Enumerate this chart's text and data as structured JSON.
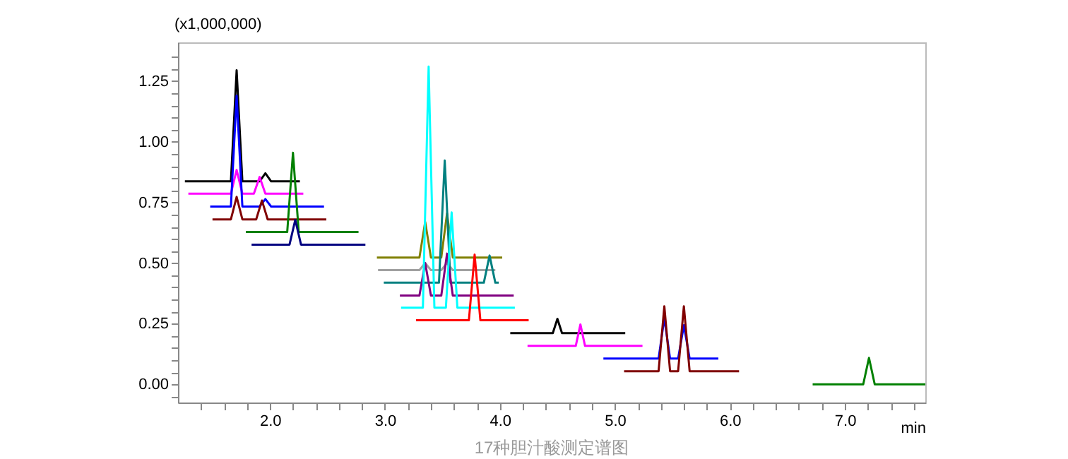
{
  "chart_data": {
    "type": "line",
    "ylabel": "(x1,000,000)",
    "xlabel": "min",
    "annotations": [
      "17种胆汁酸测定谱图"
    ],
    "xlim": [
      1.2,
      7.7
    ],
    "ylim": [
      -0.075,
      1.41
    ],
    "xticks": [
      {
        "value": 1.4,
        "label": null
      },
      {
        "value": 1.6,
        "label": null
      },
      {
        "value": 1.8,
        "label": null
      },
      {
        "value": 2.0,
        "label": "2.0"
      },
      {
        "value": 2.2,
        "label": null
      },
      {
        "value": 2.4,
        "label": null
      },
      {
        "value": 2.6,
        "label": null
      },
      {
        "value": 2.8,
        "label": null
      },
      {
        "value": 3.0,
        "label": "3.0"
      },
      {
        "value": 3.2,
        "label": null
      },
      {
        "value": 3.4,
        "label": null
      },
      {
        "value": 3.6,
        "label": null
      },
      {
        "value": 3.8,
        "label": null
      },
      {
        "value": 4.0,
        "label": "4.0"
      },
      {
        "value": 4.2,
        "label": null
      },
      {
        "value": 4.4,
        "label": null
      },
      {
        "value": 4.6,
        "label": null
      },
      {
        "value": 4.8,
        "label": null
      },
      {
        "value": 5.0,
        "label": "5.0"
      },
      {
        "value": 5.2,
        "label": null
      },
      {
        "value": 5.4,
        "label": null
      },
      {
        "value": 5.6,
        "label": null
      },
      {
        "value": 5.8,
        "label": null
      },
      {
        "value": 6.0,
        "label": "6.0"
      },
      {
        "value": 6.2,
        "label": null
      },
      {
        "value": 6.4,
        "label": null
      },
      {
        "value": 6.6,
        "label": null
      },
      {
        "value": 6.8,
        "label": null
      },
      {
        "value": 7.0,
        "label": "7.0"
      },
      {
        "value": 7.2,
        "label": null
      },
      {
        "value": 7.4,
        "label": null
      },
      {
        "value": 7.6,
        "label": null
      }
    ],
    "yticks": [
      {
        "value": -0.05,
        "label": null
      },
      {
        "value": 0,
        "label": "0.00"
      },
      {
        "value": 0.05,
        "label": null
      },
      {
        "value": 0.1,
        "label": null
      },
      {
        "value": 0.15,
        "label": null
      },
      {
        "value": 0.2,
        "label": null
      },
      {
        "value": 0.25,
        "label": "0.25"
      },
      {
        "value": 0.3,
        "label": null
      },
      {
        "value": 0.35,
        "label": null
      },
      {
        "value": 0.4,
        "label": null
      },
      {
        "value": 0.45,
        "label": null
      },
      {
        "value": 0.5,
        "label": "0.50"
      },
      {
        "value": 0.55,
        "label": null
      },
      {
        "value": 0.6,
        "label": null
      },
      {
        "value": 0.65,
        "label": null
      },
      {
        "value": 0.7,
        "label": null
      },
      {
        "value": 0.75,
        "label": "0.75"
      },
      {
        "value": 0.8,
        "label": null
      },
      {
        "value": 0.85,
        "label": null
      },
      {
        "value": 0.9,
        "label": null
      },
      {
        "value": 0.95,
        "label": null
      },
      {
        "value": 1.0,
        "label": "1.00"
      },
      {
        "value": 1.05,
        "label": null
      },
      {
        "value": 1.1,
        "label": null
      },
      {
        "value": 1.15,
        "label": null
      },
      {
        "value": 1.2,
        "label": null
      },
      {
        "value": 1.25,
        "label": "1.25"
      },
      {
        "value": 1.3,
        "label": null
      },
      {
        "value": 1.35,
        "label": null
      }
    ],
    "grid": false,
    "marker": "none",
    "line_style": "solid",
    "series": [
      {
        "color": "#000000",
        "x": [
          1.26,
          1.66,
          1.71,
          1.76,
          1.91,
          1.96,
          2.01,
          2.26
        ],
        "values": [
          0.837,
          0.837,
          1.295,
          0.837,
          0.837,
          0.87,
          0.837,
          0.837
        ]
      },
      {
        "color": "#ff00ff",
        "x": [
          1.29,
          1.66,
          1.71,
          1.76,
          1.86,
          1.91,
          1.96,
          2.29
        ],
        "values": [
          0.786,
          0.786,
          0.884,
          0.786,
          0.786,
          0.855,
          0.786,
          0.786
        ]
      },
      {
        "color": "#0000ff",
        "x": [
          1.48,
          1.66,
          1.71,
          1.76,
          1.91,
          1.96,
          2.01,
          2.47
        ],
        "values": [
          0.733,
          0.733,
          1.19,
          0.733,
          0.733,
          0.764,
          0.733,
          0.733
        ]
      },
      {
        "color": "#800000",
        "x": [
          1.5,
          1.66,
          1.71,
          1.76,
          1.88,
          1.93,
          1.98,
          2.49
        ],
        "values": [
          0.68,
          0.68,
          0.773,
          0.68,
          0.68,
          0.758,
          0.68,
          0.68
        ]
      },
      {
        "color": "#008000",
        "x": [
          1.79,
          2.15,
          2.2,
          2.25,
          2.77
        ],
        "values": [
          0.628,
          0.628,
          0.955,
          0.628,
          0.628
        ]
      },
      {
        "color": "#000080",
        "x": [
          1.84,
          2.17,
          2.22,
          2.27,
          2.83
        ],
        "values": [
          0.576,
          0.576,
          0.678,
          0.576,
          0.576
        ]
      },
      {
        "color": "#808000",
        "x": [
          2.93,
          3.3,
          3.35,
          3.4,
          3.49,
          3.54,
          3.59,
          4.02
        ],
        "values": [
          0.523,
          0.523,
          0.67,
          0.523,
          0.523,
          0.705,
          0.523,
          0.523
        ]
      },
      {
        "color": "#a0a0a0",
        "x": [
          2.94,
          3.3,
          3.35,
          3.4,
          3.49,
          3.54,
          3.59,
          3.96
        ],
        "values": [
          0.471,
          0.471,
          0.5,
          0.471,
          0.471,
          0.5,
          0.471,
          0.471
        ]
      },
      {
        "color": "#008080",
        "x": [
          2.99,
          3.47,
          3.52,
          3.57,
          3.86,
          3.91,
          3.96,
          3.99
        ],
        "values": [
          0.419,
          0.419,
          0.923,
          0.419,
          0.419,
          0.531,
          0.419,
          0.419
        ]
      },
      {
        "color": "#800080",
        "x": [
          3.13,
          3.3,
          3.35,
          3.4,
          3.49,
          3.54,
          3.59,
          4.12
        ],
        "values": [
          0.366,
          0.366,
          0.5,
          0.366,
          0.366,
          0.539,
          0.366,
          0.366
        ]
      },
      {
        "color": "#00ffff",
        "x": [
          3.14,
          3.33,
          3.38,
          3.43,
          3.53,
          3.58,
          3.63,
          4.13
        ],
        "values": [
          0.316,
          0.316,
          1.31,
          0.316,
          0.316,
          0.709,
          0.316,
          0.316
        ]
      },
      {
        "color": "#ff0000",
        "x": [
          3.27,
          3.73,
          3.78,
          3.83,
          4.25
        ],
        "values": [
          0.264,
          0.264,
          0.535,
          0.264,
          0.264
        ]
      },
      {
        "color": "#000000",
        "x": [
          4.09,
          4.46,
          4.5,
          4.54,
          5.09
        ],
        "values": [
          0.211,
          0.211,
          0.27,
          0.211,
          0.211
        ]
      },
      {
        "color": "#ff00ff",
        "x": [
          4.24,
          4.66,
          4.7,
          4.74,
          5.24
        ],
        "values": [
          0.159,
          0.159,
          0.247,
          0.159,
          0.159
        ]
      },
      {
        "color": "#0000ff",
        "x": [
          4.9,
          5.38,
          5.43,
          5.48,
          5.55,
          5.6,
          5.65,
          5.9
        ],
        "values": [
          0.106,
          0.106,
          0.273,
          0.106,
          0.106,
          0.244,
          0.106,
          0.106
        ]
      },
      {
        "color": "#800000",
        "x": [
          5.08,
          5.38,
          5.43,
          5.48,
          5.55,
          5.6,
          5.65,
          6.08
        ],
        "values": [
          0.054,
          0.054,
          0.322,
          0.054,
          0.054,
          0.322,
          0.054,
          0.054
        ]
      },
      {
        "color": "#008000",
        "x": [
          6.72,
          7.16,
          7.21,
          7.26,
          7.7
        ],
        "values": [
          0.0,
          0.0,
          0.109,
          0.0,
          0.0
        ]
      }
    ]
  }
}
